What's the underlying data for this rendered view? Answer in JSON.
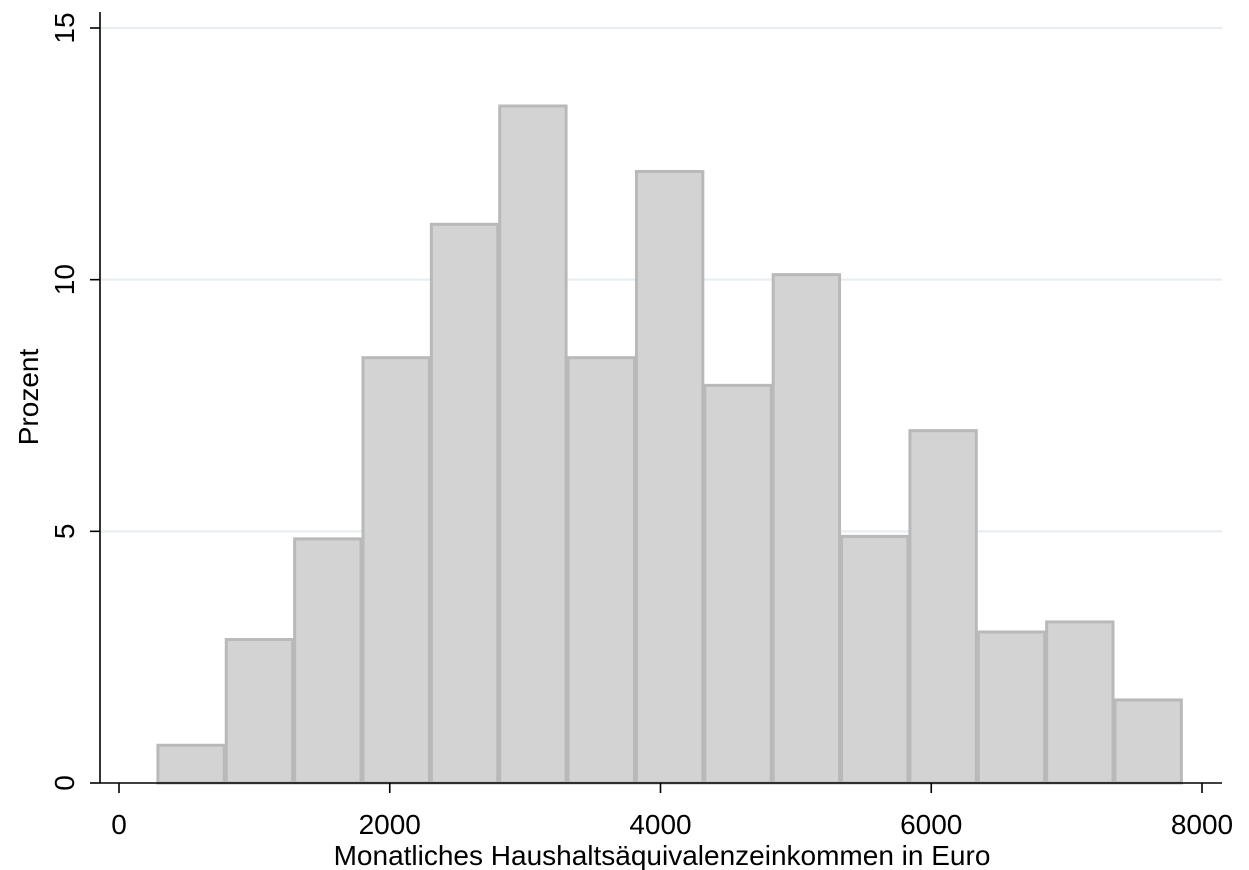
{
  "chart_data": {
    "type": "bar",
    "subtype": "histogram",
    "title": "",
    "xlabel": "Monatliches Haushaltsäquivalenzeinkommen in Euro",
    "ylabel": "Prozent",
    "xlim": [
      -100,
      8200
    ],
    "ylim": [
      0,
      15
    ],
    "xticks": [
      0,
      2000,
      4000,
      6000,
      8000
    ],
    "yticks": [
      0,
      5,
      10,
      15
    ],
    "grid": true,
    "legend": "none",
    "bin_width": 505,
    "bins": [
      {
        "start": 280,
        "end": 785,
        "value": 0.75
      },
      {
        "start": 785,
        "end": 1290,
        "value": 2.85
      },
      {
        "start": 1290,
        "end": 1795,
        "value": 4.85
      },
      {
        "start": 1795,
        "end": 2300,
        "value": 8.45
      },
      {
        "start": 2300,
        "end": 2805,
        "value": 11.1
      },
      {
        "start": 2805,
        "end": 3310,
        "value": 13.45
      },
      {
        "start": 3310,
        "end": 3815,
        "value": 8.45
      },
      {
        "start": 3815,
        "end": 4320,
        "value": 12.15
      },
      {
        "start": 4320,
        "end": 4825,
        "value": 7.9
      },
      {
        "start": 4825,
        "end": 5330,
        "value": 10.1
      },
      {
        "start": 5330,
        "end": 5835,
        "value": 4.9
      },
      {
        "start": 5835,
        "end": 6340,
        "value": 7.0
      },
      {
        "start": 6340,
        "end": 6845,
        "value": 3.0
      },
      {
        "start": 6845,
        "end": 7350,
        "value": 3.2
      },
      {
        "start": 7350,
        "end": 7855,
        "value": 1.65
      }
    ],
    "colors": {
      "bar_fill": "#d3d3d3",
      "bar_stroke": "#b9b9b9",
      "grid": "#e4eef0",
      "axis": "#000000"
    }
  }
}
